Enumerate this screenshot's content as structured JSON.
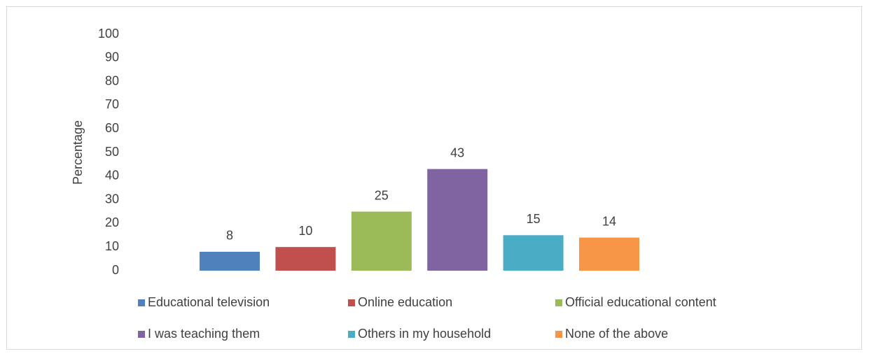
{
  "chart_data": {
    "type": "bar",
    "y_label": "Percentage",
    "categories": [
      null
    ],
    "series": [
      {
        "name": "Educational television",
        "color": "#4f81bd",
        "values": [
          8
        ]
      },
      {
        "name": "Online education",
        "color": "#c0504d",
        "values": [
          10
        ]
      },
      {
        "name": "Official educational content",
        "color": "#9bbb59",
        "values": [
          25
        ]
      },
      {
        "name": "I was teaching them",
        "color": "#8064a2",
        "values": [
          43
        ]
      },
      {
        "name": "Others in my household",
        "color": "#4bacc6",
        "values": [
          15
        ]
      },
      {
        "name": "None of the above",
        "color": "#f79646",
        "values": [
          14
        ]
      }
    ],
    "ylim": [
      0,
      100
    ],
    "yticks": [
      0,
      10,
      20,
      30,
      40,
      50,
      60,
      70,
      80,
      90,
      100
    ],
    "grid": false,
    "legend": "bottom"
  }
}
